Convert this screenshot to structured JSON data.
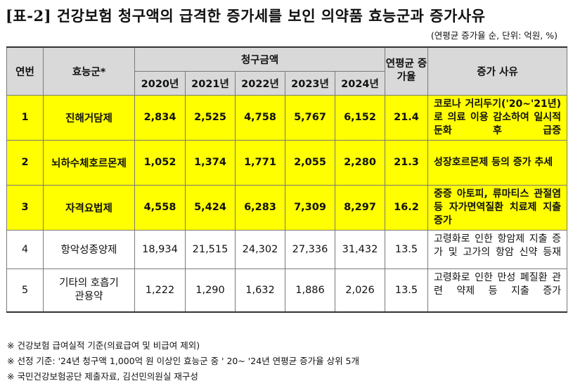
{
  "title": "[표-2] 건강보험 청구액의 급격한 증가세를 보인 의약품 효능군과 증가사유",
  "unit_note": "(연평균 증가율 순, 단위: 억원, %)",
  "header": {
    "rank": "연번",
    "group": "효능군*",
    "claim": "청구금액",
    "years": [
      "2020년",
      "2021년",
      "2022년",
      "2023년",
      "2024년"
    ],
    "cagr": "연평균 증가율",
    "reason": "증가 사유"
  },
  "rows": [
    {
      "rank": "1",
      "group": "진해거담제",
      "values": [
        "2,834",
        "2,525",
        "4,758",
        "5,767",
        "6,152"
      ],
      "cagr": "21.4",
      "reason": "코로나 거리두기('20~'21년)로 의료 이용 감소하여 일시적 둔화 후 급증",
      "highlight": true
    },
    {
      "rank": "2",
      "group": "뇌하수체호르몬제",
      "values": [
        "1,052",
        "1,374",
        "1,771",
        "2,055",
        "2,280"
      ],
      "cagr": "21.3",
      "reason": "성장호르몬제 등의 증가 추세",
      "highlight": true
    },
    {
      "rank": "3",
      "group": "자격요법제",
      "values": [
        "4,558",
        "5,424",
        "6,283",
        "7,309",
        "8,297"
      ],
      "cagr": "16.2",
      "reason": "중증 아토피, 류마티스 관절염 등 자가면역질환 치료제 지출 증가",
      "highlight": true
    },
    {
      "rank": "4",
      "group": "항악성종양제",
      "values": [
        "18,934",
        "21,515",
        "24,302",
        "27,336",
        "31,432"
      ],
      "cagr": "13.5",
      "reason": "고령화로 인한 항암제 지출 증가 및 고가의 항암 신약 등재",
      "highlight": false
    },
    {
      "rank": "5",
      "group": "기타의 호흡기관용약",
      "values": [
        "1,222",
        "1,290",
        "1,632",
        "1,886",
        "2,026"
      ],
      "cagr": "13.5",
      "reason": "고령화로 인한 만성 폐질환 관련 약제 등 지출 증가",
      "highlight": false
    }
  ],
  "notes": [
    "※ 건강보험 급여실적 기준(의료급여 및 비급여 제외)",
    "※ 선정 기준: '24년 청구액 1,000억 원 이상인 효능군 중 ' 20~ '24년 연평균 증가율 상위 5개",
    "※ 국민건강보험공단 제출자료, 김선민의원실 재구성"
  ]
}
